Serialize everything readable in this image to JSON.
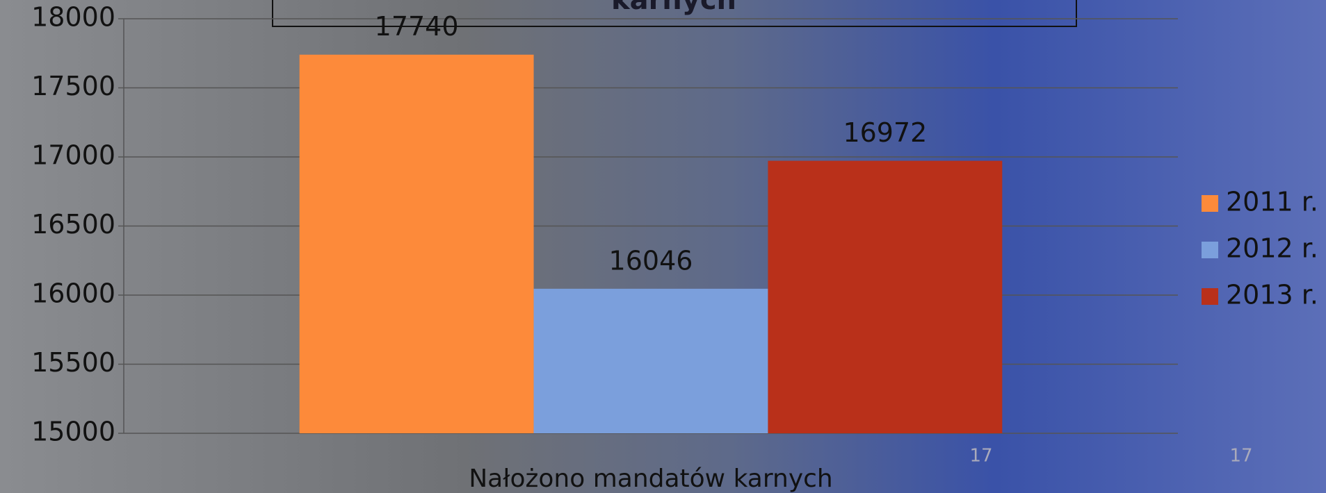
{
  "chart_data": {
    "type": "bar",
    "title": "karnych",
    "categories": [
      "Nałożono mandatów karnych"
    ],
    "series": [
      {
        "name": "2011 r.",
        "color": "#fd8a3a",
        "values": [
          17740
        ]
      },
      {
        "name": "2012 r.",
        "color": "#7b9fdc",
        "values": [
          16046
        ]
      },
      {
        "name": "2013 r.",
        "color": "#b9301a",
        "values": [
          16972
        ]
      }
    ],
    "ylim": [
      15000,
      18000
    ],
    "yticks": [
      15000,
      15500,
      16000,
      16500,
      17000,
      17500,
      18000
    ],
    "grid": true,
    "legend": "right",
    "slide_numbers": [
      "17",
      "17"
    ]
  }
}
